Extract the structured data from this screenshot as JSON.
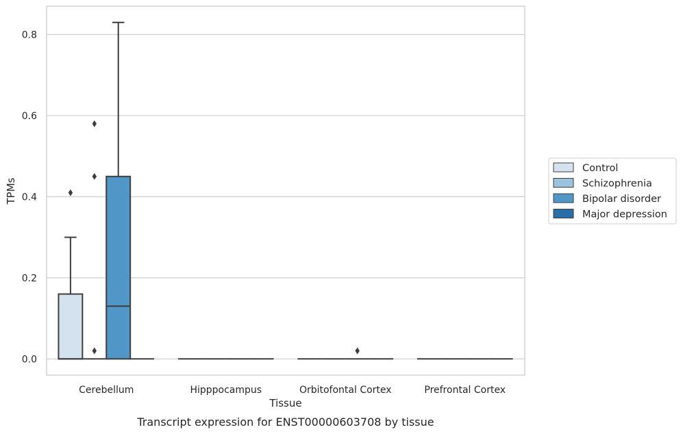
{
  "chart_data": {
    "type": "box",
    "xlabel": "Tissue",
    "ylabel": "TPMs",
    "caption": "Transcript expression for ENST00000603708 by tissue",
    "categories": [
      "Cerebellum",
      "Hipppocampus",
      "Orbitofontal Cortex",
      "Prefrontal Cortex"
    ],
    "ylim": [
      -0.04,
      0.87
    ],
    "yticks": [
      0.0,
      0.2,
      0.4,
      0.6,
      0.8
    ],
    "ytick_labels": [
      "0.0",
      "0.2",
      "0.4",
      "0.6",
      "0.8"
    ],
    "grid": true,
    "legend_position": "right",
    "series": [
      {
        "name": "Control",
        "color": "#d4e2ef",
        "boxes": [
          {
            "category": "Cerebellum",
            "whisker_low": 0.0,
            "q1": 0.0,
            "median": 0.0,
            "q3": 0.16,
            "whisker_high": 0.3,
            "outliers": [
              0.41
            ]
          },
          {
            "category": "Hipppocampus",
            "whisker_low": 0.0,
            "q1": 0.0,
            "median": 0.0,
            "q3": 0.0,
            "whisker_high": 0.0,
            "outliers": []
          },
          {
            "category": "Orbitofontal Cortex",
            "whisker_low": 0.0,
            "q1": 0.0,
            "median": 0.0,
            "q3": 0.0,
            "whisker_high": 0.0,
            "outliers": []
          },
          {
            "category": "Prefrontal Cortex",
            "whisker_low": 0.0,
            "q1": 0.0,
            "median": 0.0,
            "q3": 0.0,
            "whisker_high": 0.0,
            "outliers": []
          }
        ]
      },
      {
        "name": "Schizophrenia",
        "color": "#9cc3de",
        "boxes": [
          {
            "category": "Cerebellum",
            "whisker_low": 0.0,
            "q1": 0.0,
            "median": 0.0,
            "q3": 0.0,
            "whisker_high": 0.0,
            "outliers": [
              0.02,
              0.45,
              0.58
            ]
          },
          {
            "category": "Hipppocampus",
            "whisker_low": 0.0,
            "q1": 0.0,
            "median": 0.0,
            "q3": 0.0,
            "whisker_high": 0.0,
            "outliers": []
          },
          {
            "category": "Orbitofontal Cortex",
            "whisker_low": 0.0,
            "q1": 0.0,
            "median": 0.0,
            "q3": 0.0,
            "whisker_high": 0.0,
            "outliers": []
          },
          {
            "category": "Prefrontal Cortex",
            "whisker_low": 0.0,
            "q1": 0.0,
            "median": 0.0,
            "q3": 0.0,
            "whisker_high": 0.0,
            "outliers": []
          }
        ]
      },
      {
        "name": "Bipolar disorder",
        "color": "#5096c7",
        "boxes": [
          {
            "category": "Cerebellum",
            "whisker_low": 0.0,
            "q1": 0.0,
            "median": 0.13,
            "q3": 0.45,
            "whisker_high": 0.83,
            "outliers": []
          },
          {
            "category": "Hipppocampus",
            "whisker_low": 0.0,
            "q1": 0.0,
            "median": 0.0,
            "q3": 0.0,
            "whisker_high": 0.0,
            "outliers": []
          },
          {
            "category": "Orbitofontal Cortex",
            "whisker_low": 0.0,
            "q1": 0.0,
            "median": 0.0,
            "q3": 0.0,
            "whisker_high": 0.0,
            "outliers": [
              0.02
            ]
          },
          {
            "category": "Prefrontal Cortex",
            "whisker_low": 0.0,
            "q1": 0.0,
            "median": 0.0,
            "q3": 0.0,
            "whisker_high": 0.0,
            "outliers": []
          }
        ]
      },
      {
        "name": "Major depression",
        "color": "#2a6ea8",
        "boxes": [
          {
            "category": "Cerebellum",
            "whisker_low": 0.0,
            "q1": 0.0,
            "median": 0.0,
            "q3": 0.0,
            "whisker_high": 0.0,
            "outliers": []
          },
          {
            "category": "Hipppocampus",
            "whisker_low": 0.0,
            "q1": 0.0,
            "median": 0.0,
            "q3": 0.0,
            "whisker_high": 0.0,
            "outliers": []
          },
          {
            "category": "Orbitofontal Cortex",
            "whisker_low": 0.0,
            "q1": 0.0,
            "median": 0.0,
            "q3": 0.0,
            "whisker_high": 0.0,
            "outliers": []
          },
          {
            "category": "Prefrontal Cortex",
            "whisker_low": 0.0,
            "q1": 0.0,
            "median": 0.0,
            "q3": 0.0,
            "whisker_high": 0.0,
            "outliers": []
          }
        ]
      }
    ]
  }
}
